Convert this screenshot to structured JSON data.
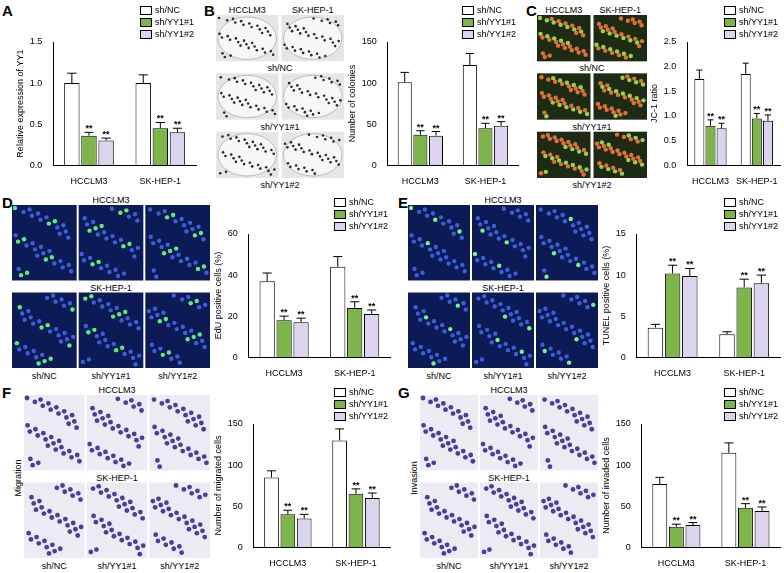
{
  "panels": [
    {
      "label": "A"
    },
    {
      "label": "B",
      "images": {
        "column_labels": [
          "HCCLM3",
          "SK-HEP-1"
        ],
        "row_labels": [
          "sh/NC",
          "sh/YY1#1",
          "sh/YY1#2"
        ]
      }
    },
    {
      "label": "C",
      "images": {
        "column_labels": [
          "HCCLM3",
          "SK-HEP-1"
        ],
        "row_labels": [
          "sh/NC",
          "sh/YY1#1",
          "sh/YY1#2"
        ]
      }
    },
    {
      "label": "D",
      "images": {
        "row_labels": [
          "HCCLM3",
          "SK-HEP-1"
        ],
        "column_labels": [
          "sh/NC",
          "sh/YY1#1",
          "sh/YY1#2"
        ]
      }
    },
    {
      "label": "E",
      "images": {
        "row_labels": [
          "HCCLM3",
          "SK-HEP-1"
        ],
        "column_labels": [
          "sh/NC",
          "sh/YY1#1",
          "sh/YY1#2"
        ]
      }
    },
    {
      "label": "F",
      "images": {
        "side_label": "Migration",
        "row_labels": [
          "HCCLM3",
          "SK-HEP-1"
        ],
        "column_labels": [
          "sh/NC",
          "sh/YY1#1",
          "sh/YY1#2"
        ]
      }
    },
    {
      "label": "G",
      "images": {
        "side_label": "Invasion",
        "row_labels": [
          "HCCLM3",
          "SK-HEP-1"
        ],
        "column_labels": [
          "sh/NC",
          "sh/YY1#1",
          "sh/YY1#2"
        ]
      }
    }
  ],
  "chart_data": [
    {
      "type": "bar",
      "y_label": "Relative expression of YY1",
      "categories": [
        "HCCLM3",
        "SK-HEP-1"
      ],
      "series": [
        {
          "name": "sh/NC",
          "color": "#ffffff",
          "values": [
            1.0,
            1.0
          ],
          "errors": [
            0.12,
            0.1
          ]
        },
        {
          "name": "sh/YY1#1",
          "color": "#7db54a",
          "values": [
            0.36,
            0.45
          ],
          "errors": [
            0.04,
            0.07
          ],
          "significance": [
            "**",
            "**"
          ]
        },
        {
          "name": "sh/YY1#2",
          "color": "#dcd3ec",
          "values": [
            0.3,
            0.4
          ],
          "errors": [
            0.03,
            0.05
          ],
          "significance": [
            "**",
            "**"
          ]
        }
      ],
      "ylim": [
        0,
        1.5
      ],
      "yticks": [
        {
          "value": 0,
          "label": "0.0"
        },
        {
          "value": 0.5,
          "label": "0.5"
        },
        {
          "value": 1,
          "label": "1.0"
        },
        {
          "value": 1.5,
          "label": "1.5"
        }
      ],
      "grid": false,
      "legend": "top-right"
    },
    {
      "type": "bar",
      "y_label": "Number of colonies",
      "categories": [
        "HCCLM3",
        "SK-HEP-1"
      ],
      "series": [
        {
          "name": "sh/NC",
          "color": "#ffffff",
          "values": [
            101,
            122
          ],
          "errors": [
            12,
            14
          ]
        },
        {
          "name": "sh/YY1#1",
          "color": "#7db54a",
          "values": [
            37,
            45
          ],
          "errors": [
            5,
            6
          ],
          "significance": [
            "**",
            "**"
          ]
        },
        {
          "name": "sh/YY1#2",
          "color": "#dcd3ec",
          "values": [
            36,
            48
          ],
          "errors": [
            5,
            5
          ],
          "significance": [
            "**",
            "**"
          ]
        }
      ],
      "ylim": [
        0,
        150
      ],
      "yticks": [
        0,
        50,
        100,
        150
      ],
      "grid": false,
      "legend": "top-right"
    },
    {
      "type": "bar",
      "y_label": "JC-1 ratio",
      "categories": [
        "HCCLM3",
        "SK-HEP-1"
      ],
      "series": [
        {
          "name": "sh/NC",
          "color": "#ffffff",
          "values": [
            1.75,
            1.85
          ],
          "errors": [
            0.18,
            0.22
          ]
        },
        {
          "name": "sh/YY1#1",
          "color": "#7db54a",
          "values": [
            0.8,
            0.95
          ],
          "errors": [
            0.12,
            0.1
          ],
          "significance": [
            "**",
            "**"
          ]
        },
        {
          "name": "sh/YY1#2",
          "color": "#dcd3ec",
          "values": [
            0.75,
            0.9
          ],
          "errors": [
            0.1,
            0.12
          ],
          "significance": [
            "**",
            "**"
          ]
        }
      ],
      "ylim": [
        0,
        2.5
      ],
      "yticks": [
        {
          "value": 0,
          "label": "0.0"
        },
        {
          "value": 0.5,
          "label": "0.5"
        },
        {
          "value": 1,
          "label": "1.0"
        },
        {
          "value": 1.5,
          "label": "1.5"
        },
        {
          "value": 2,
          "label": "2.0"
        },
        {
          "value": 2.5,
          "label": "2.5"
        }
      ],
      "grid": false,
      "legend": "top-right"
    },
    {
      "type": "bar",
      "y_label": "EdU positive cells (%)",
      "categories": [
        "HCCLM3",
        "SK-HEP-1"
      ],
      "series": [
        {
          "name": "sh/NC",
          "color": "#ffffff",
          "values": [
            37,
            44
          ],
          "errors": [
            4,
            5
          ]
        },
        {
          "name": "sh/YY1#1",
          "color": "#7db54a",
          "values": [
            18,
            24
          ],
          "errors": [
            2,
            3
          ],
          "significance": [
            "**",
            "**"
          ]
        },
        {
          "name": "sh/YY1#2",
          "color": "#dcd3ec",
          "values": [
            17,
            21
          ],
          "errors": [
            2,
            2
          ],
          "significance": [
            "**",
            "**"
          ]
        }
      ],
      "ylim": [
        0,
        60
      ],
      "yticks": [
        0,
        20,
        40,
        60
      ],
      "grid": false,
      "legend": "top-right"
    },
    {
      "type": "bar",
      "y_label": "TUNEL positive cells (%)",
      "categories": [
        "HCCLM3",
        "SK-HEP-1"
      ],
      "series": [
        {
          "name": "sh/NC",
          "color": "#ffffff",
          "values": [
            3.6,
            2.8
          ],
          "errors": [
            0.4,
            0.3
          ]
        },
        {
          "name": "sh/YY1#1",
          "color": "#7db54a",
          "values": [
            10.2,
            8.5
          ],
          "errors": [
            1.0,
            1.0
          ],
          "significance": [
            "**",
            "**"
          ]
        },
        {
          "name": "sh/YY1#2",
          "color": "#dcd3ec",
          "values": [
            9.9,
            9.0
          ],
          "errors": [
            0.9,
            1.0
          ],
          "significance": [
            "**",
            "**"
          ]
        }
      ],
      "ylim": [
        0,
        15
      ],
      "yticks": [
        0,
        5,
        10,
        15
      ],
      "grid": false,
      "legend": "top-right"
    },
    {
      "type": "bar",
      "y_label": "Number of migrated cells",
      "categories": [
        "HCCLM3",
        "SK-HEP-1"
      ],
      "series": [
        {
          "name": "sh/NC",
          "color": "#ffffff",
          "values": [
            85,
            130
          ],
          "errors": [
            8,
            14
          ]
        },
        {
          "name": "sh/YY1#1",
          "color": "#7db54a",
          "values": [
            40,
            65
          ],
          "errors": [
            5,
            6
          ],
          "significance": [
            "**",
            "**"
          ]
        },
        {
          "name": "sh/YY1#2",
          "color": "#dcd3ec",
          "values": [
            35,
            60
          ],
          "errors": [
            5,
            6
          ],
          "significance": [
            "**",
            "**"
          ]
        }
      ],
      "ylim": [
        0,
        150
      ],
      "yticks": [
        0,
        50,
        100,
        150
      ],
      "grid": false,
      "legend": "top-right"
    },
    {
      "type": "bar",
      "y_label": "Number of invaded cells",
      "categories": [
        "HCCLM3",
        "SK-HEP-1"
      ],
      "series": [
        {
          "name": "sh/NC",
          "color": "#ffffff",
          "values": [
            77,
            115
          ],
          "errors": [
            8,
            12
          ]
        },
        {
          "name": "sh/YY1#1",
          "color": "#7db54a",
          "values": [
            25,
            48
          ],
          "errors": [
            3,
            5
          ],
          "significance": [
            "**",
            "**"
          ]
        },
        {
          "name": "sh/YY1#2",
          "color": "#dcd3ec",
          "values": [
            27,
            44
          ],
          "errors": [
            3,
            5
          ],
          "significance": [
            "**",
            "**"
          ]
        }
      ],
      "ylim": [
        0,
        150
      ],
      "yticks": [
        0,
        50,
        100,
        150
      ],
      "grid": false,
      "legend": "top-right"
    }
  ]
}
